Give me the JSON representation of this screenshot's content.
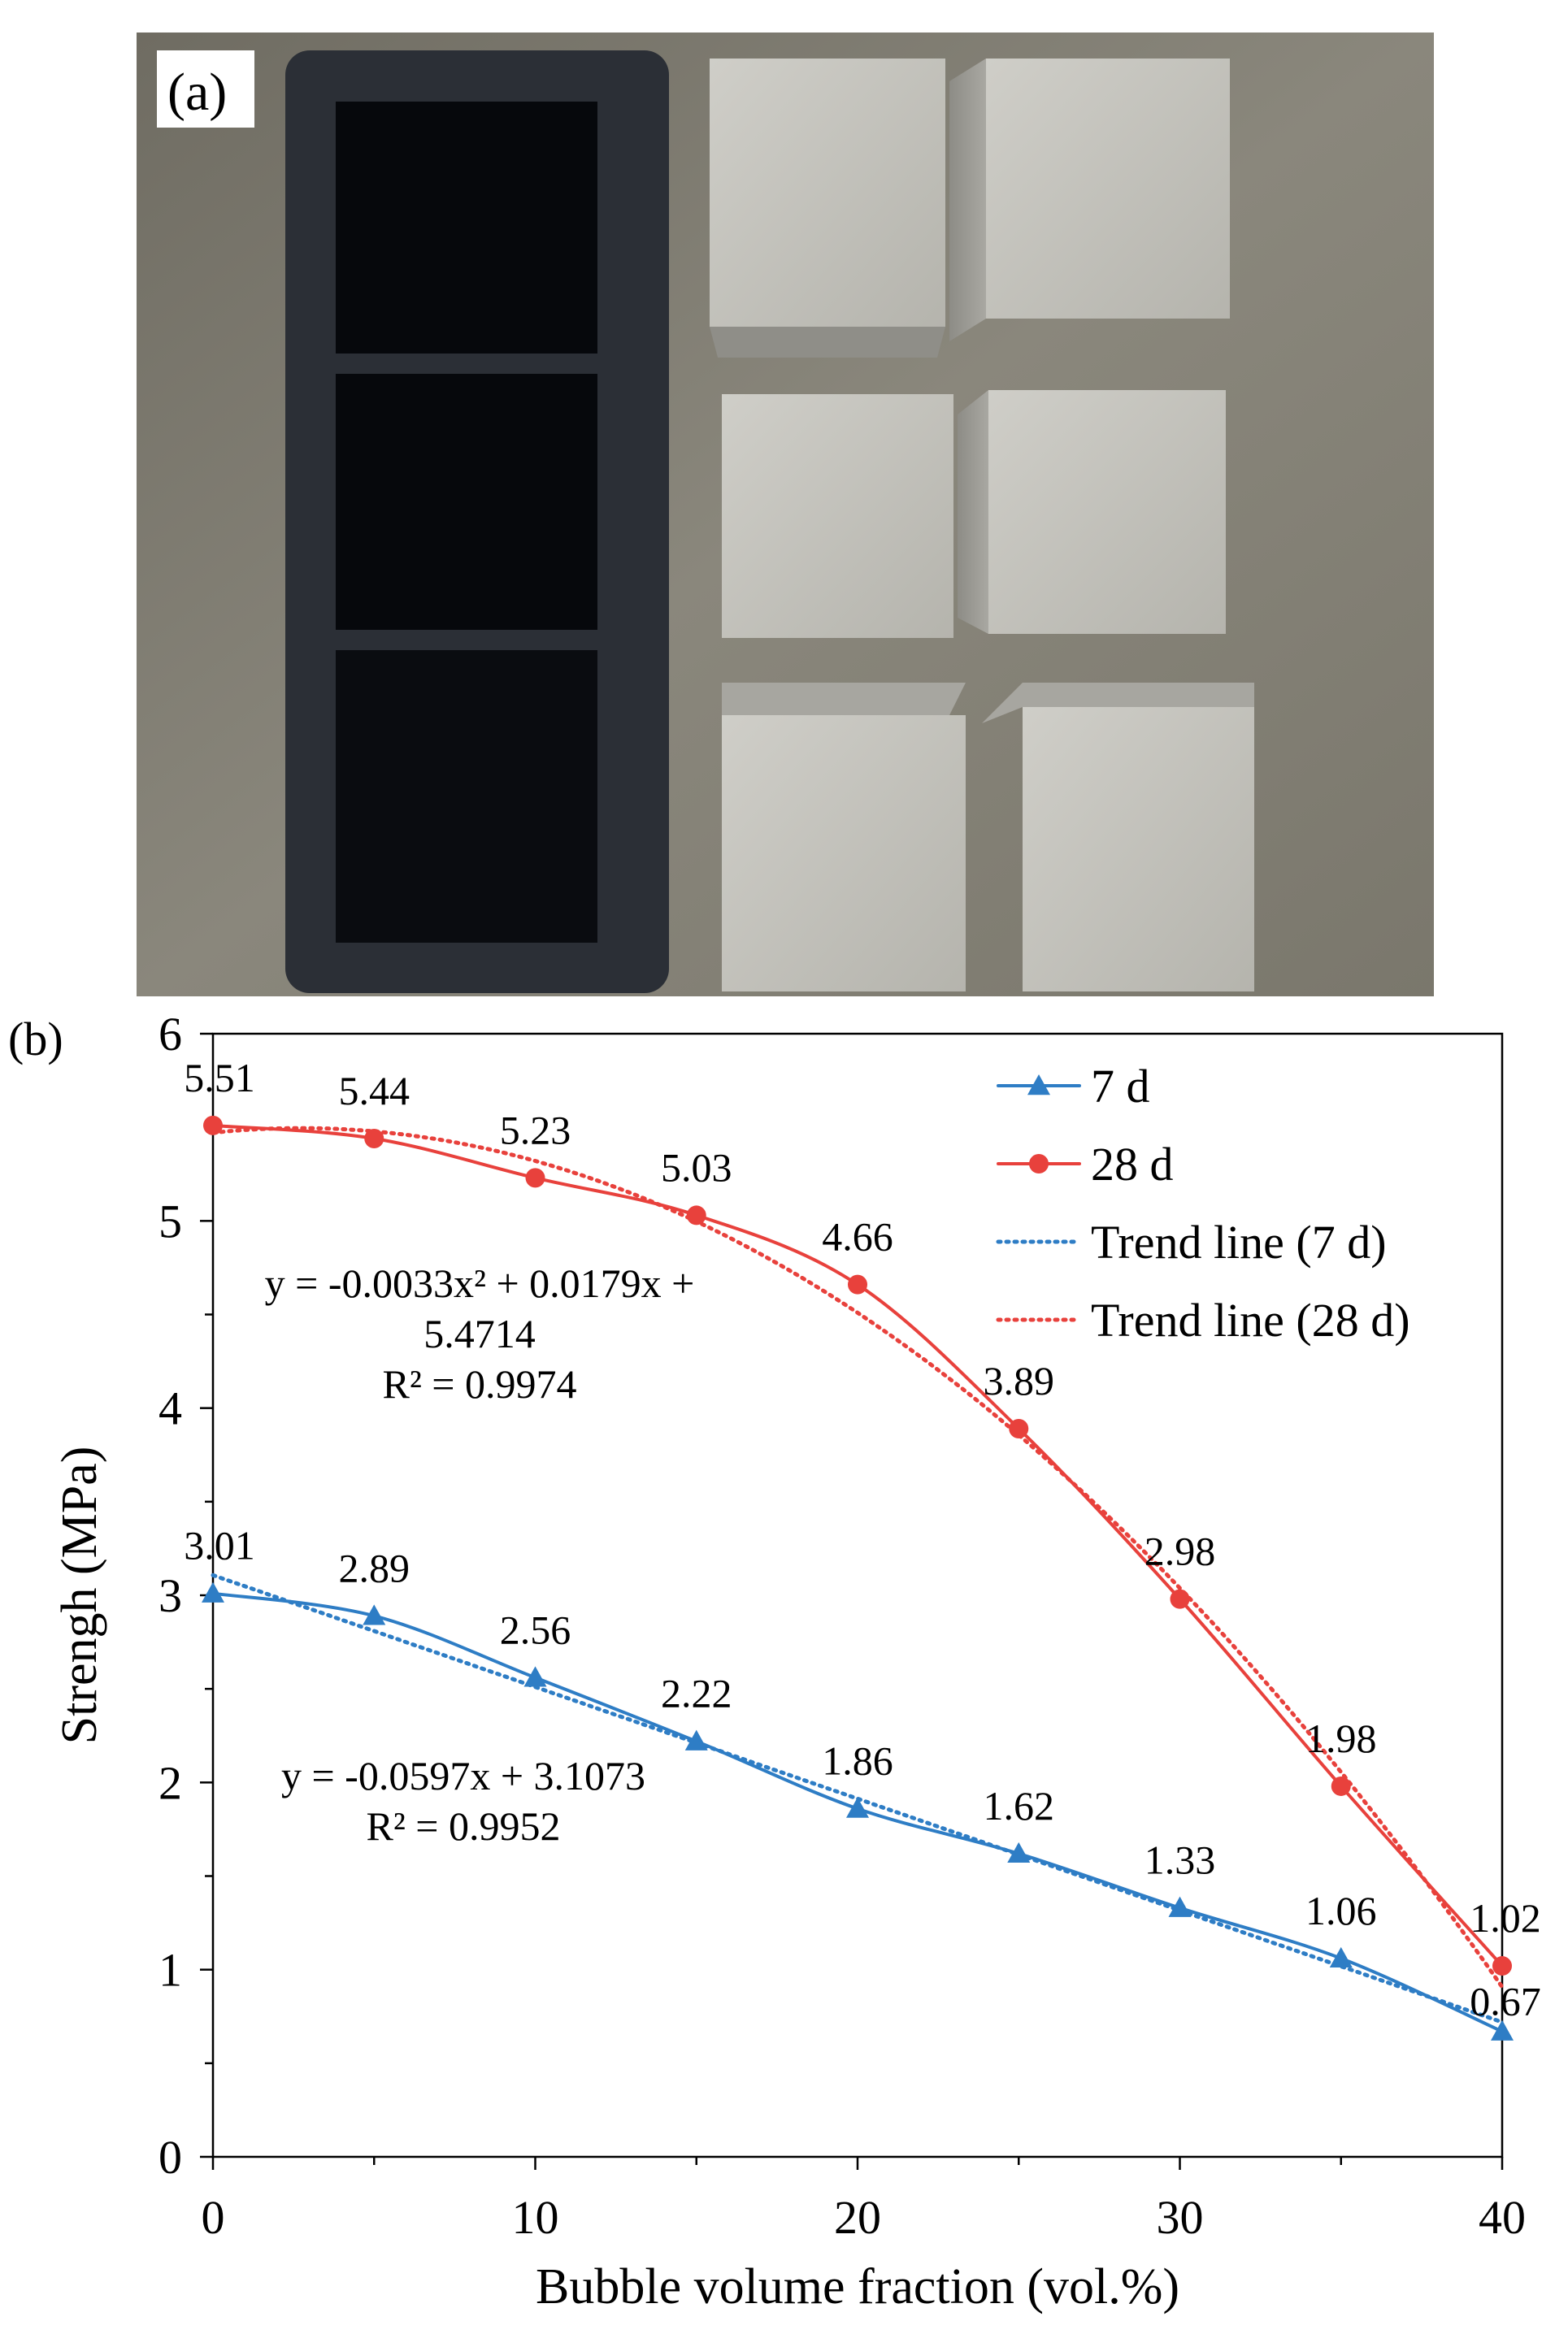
{
  "panel_a": {
    "label": "(a)",
    "description_icon": "photo-of-mold-and-six-concrete-cubes"
  },
  "panel_b": {
    "label": "(b)"
  },
  "chart_data": {
    "type": "line",
    "title": "",
    "xlabel": "Bubble volume fraction (vol.%)",
    "ylabel": "Strengh (MPa)",
    "xlim": [
      0,
      40
    ],
    "ylim": [
      0,
      6
    ],
    "xticks": [
      0,
      10,
      20,
      30,
      40
    ],
    "yticks": [
      0,
      1,
      2,
      3,
      4,
      5,
      6
    ],
    "grid": false,
    "legend_position": "top-right",
    "x": [
      0,
      5,
      10,
      15,
      20,
      25,
      30,
      35,
      40
    ],
    "series": [
      {
        "name": "7 d",
        "marker": "triangle",
        "color": "#2E7DC5",
        "values": [
          3.01,
          2.89,
          2.56,
          2.22,
          1.86,
          1.62,
          1.33,
          1.06,
          0.67
        ],
        "labels": [
          "3.01",
          "2.89",
          "2.56",
          "2.22",
          "1.86",
          "1.62",
          "1.33",
          "1.06",
          "0.67"
        ]
      },
      {
        "name": "28 d",
        "marker": "circle",
        "color": "#E8413C",
        "values": [
          5.51,
          5.44,
          5.23,
          5.03,
          4.66,
          3.89,
          2.98,
          1.98,
          1.02
        ],
        "labels": [
          "5.51",
          "5.44",
          "5.23",
          "5.03",
          "4.66",
          "3.89",
          "2.98",
          "1.98",
          "1.02"
        ]
      }
    ],
    "trendlines": [
      {
        "name": "Trend line (7 d)",
        "color": "#2E7DC5",
        "style": "dotted",
        "coefficients": [
          0,
          -0.0597,
          3.1073
        ],
        "equation": "y = -0.0597x + 3.1073",
        "r2": "R² = 0.9952"
      },
      {
        "name": "Trend line (28 d)",
        "color": "#E8413C",
        "style": "dotted",
        "coefficients": [
          -0.0033,
          0.0179,
          5.4714
        ],
        "equation_line1": "y = -0.0033x² + 0.0179x +",
        "equation_line2": "5.4714",
        "r2": "R² = 0.9974"
      }
    ]
  }
}
